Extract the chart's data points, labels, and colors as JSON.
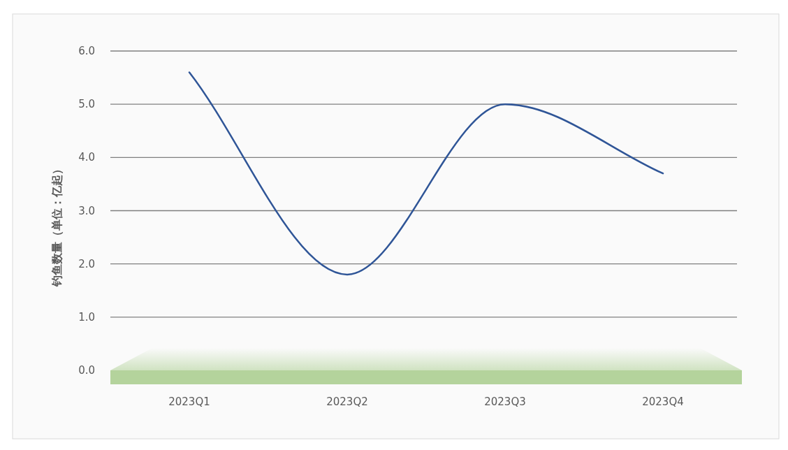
{
  "chart_data": {
    "type": "line",
    "ylabel": "钓鱼数量（单位：亿起）",
    "categories": [
      "2023Q1",
      "2023Q2",
      "2023Q3",
      "2023Q4"
    ],
    "series": [
      {
        "color": "#2f5597",
        "values": [
          5.6,
          1.8,
          5.0,
          3.7
        ]
      }
    ],
    "ylim": [
      0,
      6
    ],
    "yticks": [
      {
        "value": 0,
        "label": "0.0"
      },
      {
        "value": 1,
        "label": "1.0"
      },
      {
        "value": 2,
        "label": "2.0"
      },
      {
        "value": 3,
        "label": "3.0"
      },
      {
        "value": 4,
        "label": "4.0"
      },
      {
        "value": 5,
        "label": "5.0"
      },
      {
        "value": 6,
        "label": "6.0"
      }
    ],
    "grid": "y",
    "marker": "none",
    "line_style": "solid"
  }
}
